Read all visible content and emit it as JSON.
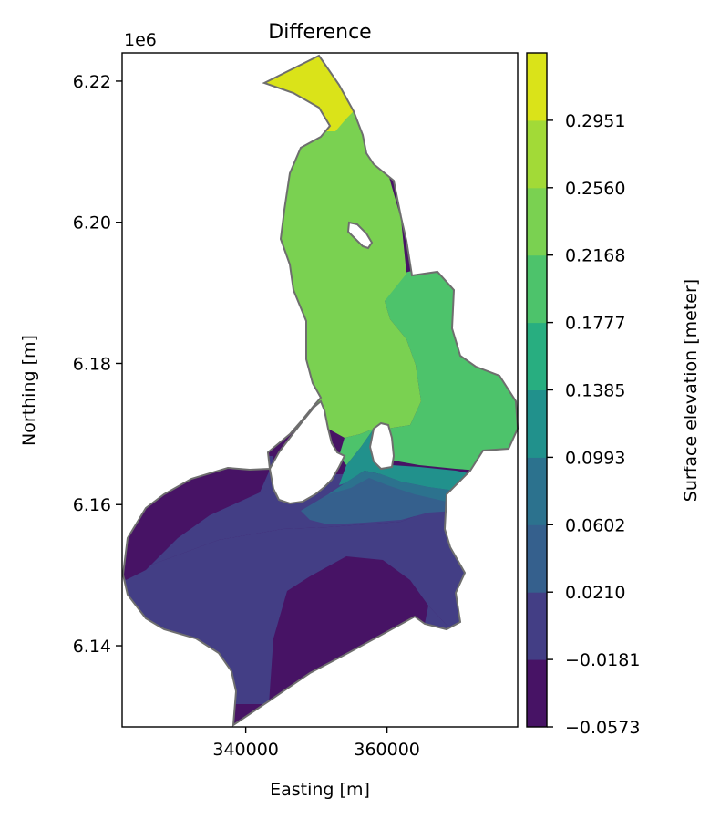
{
  "chart_data": {
    "type": "contour",
    "title": "Difference",
    "xlabel": "Easting [m]",
    "ylabel": "Northing [m]",
    "y_offset_label": "1e6",
    "xlim": [
      322500,
      378500
    ],
    "ylim": [
      6.1285,
      6.224
    ],
    "x_ticks": [
      340000,
      360000
    ],
    "x_tick_labels": [
      "340000",
      "360000"
    ],
    "y_ticks": [
      6.14,
      6.16,
      6.18,
      6.2,
      6.22
    ],
    "y_tick_labels": [
      "6.14",
      "6.16",
      "6.18",
      "6.20",
      "6.22"
    ],
    "colorbar": {
      "label": "Surface elevation [meter]",
      "levels": [
        -0.0573,
        -0.0181,
        0.021,
        0.0602,
        0.0993,
        0.1385,
        0.1777,
        0.2168,
        0.256,
        0.2951
      ],
      "level_labels": [
        "−0.0573",
        "−0.0181",
        "0.0210",
        "0.0602",
        "0.0993",
        "0.1385",
        "0.1777",
        "0.2168",
        "0.2560",
        "0.2951"
      ],
      "colors": [
        "#471365",
        "#433e85",
        "#35608d",
        "#2c728e",
        "#21918c",
        "#28ae80",
        "#4dc36b",
        "#7ad151",
        "#a2da37",
        "#dae319"
      ]
    },
    "outline_color": "#6e6e6e"
  }
}
